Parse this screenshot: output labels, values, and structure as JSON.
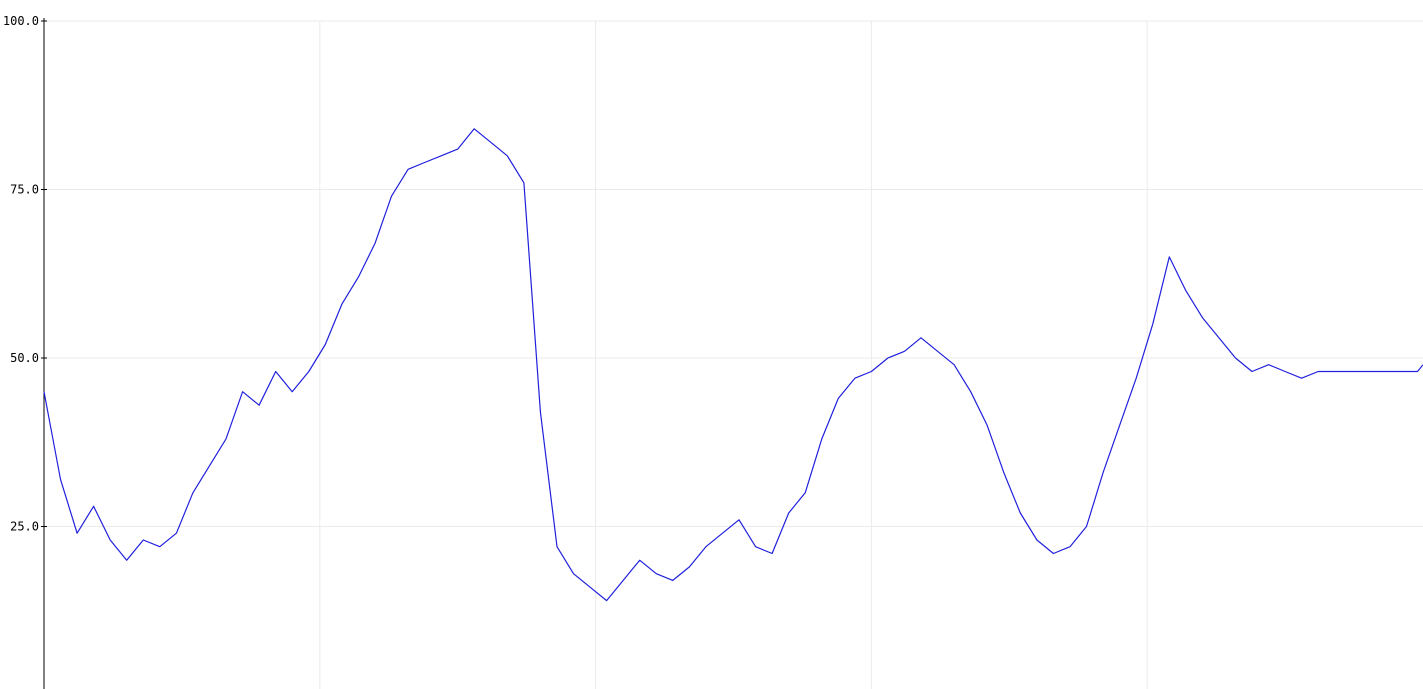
{
  "chart_data": {
    "type": "line",
    "title": "",
    "xlabel": "",
    "ylabel": "",
    "ylim": [
      0,
      100
    ],
    "xlim": [
      0,
      500
    ],
    "grid": true,
    "y_ticks": [
      {
        "value": 100,
        "label": "100.0"
      },
      {
        "value": 75,
        "label": "75.0"
      },
      {
        "value": 50,
        "label": "50.0"
      },
      {
        "value": 25,
        "label": "25.0"
      }
    ],
    "x_grid_values": [
      100,
      200,
      300,
      400
    ],
    "series": [
      {
        "color": "#2020dd",
        "x": [
          0,
          6,
          12,
          18,
          24,
          30,
          36,
          42,
          48,
          54,
          60,
          66,
          72,
          78,
          84,
          90,
          96,
          102,
          108,
          114,
          120,
          126,
          132,
          138,
          144,
          150,
          156,
          162,
          168,
          174,
          180,
          186,
          192,
          198,
          204,
          210,
          216,
          222,
          228,
          234,
          240,
          246,
          252,
          258,
          264,
          270,
          276,
          282,
          288,
          294,
          300,
          306,
          312,
          318,
          324,
          330,
          336,
          342,
          348,
          354,
          360,
          366,
          372,
          378,
          384,
          390,
          396,
          402,
          408,
          414,
          420,
          426,
          432,
          438,
          444,
          450,
          456,
          462,
          468,
          474,
          480,
          486,
          492,
          498,
          500
        ],
        "y": [
          45,
          32,
          24,
          28,
          23,
          20,
          23,
          22,
          24,
          30,
          34,
          38,
          45,
          43,
          48,
          45,
          48,
          52,
          58,
          62,
          67,
          74,
          78,
          79,
          80,
          81,
          84,
          82,
          80,
          76,
          42,
          22,
          18,
          16,
          14,
          17,
          20,
          18,
          17,
          19,
          22,
          24,
          26,
          22,
          21,
          27,
          30,
          38,
          44,
          47,
          48,
          50,
          51,
          53,
          51,
          49,
          45,
          40,
          33,
          27,
          23,
          21,
          22,
          25,
          33,
          40,
          47,
          55,
          65,
          60,
          56,
          53,
          50,
          48,
          49,
          48,
          47,
          48,
          48,
          48,
          48,
          48,
          48,
          48,
          49
        ]
      }
    ]
  }
}
